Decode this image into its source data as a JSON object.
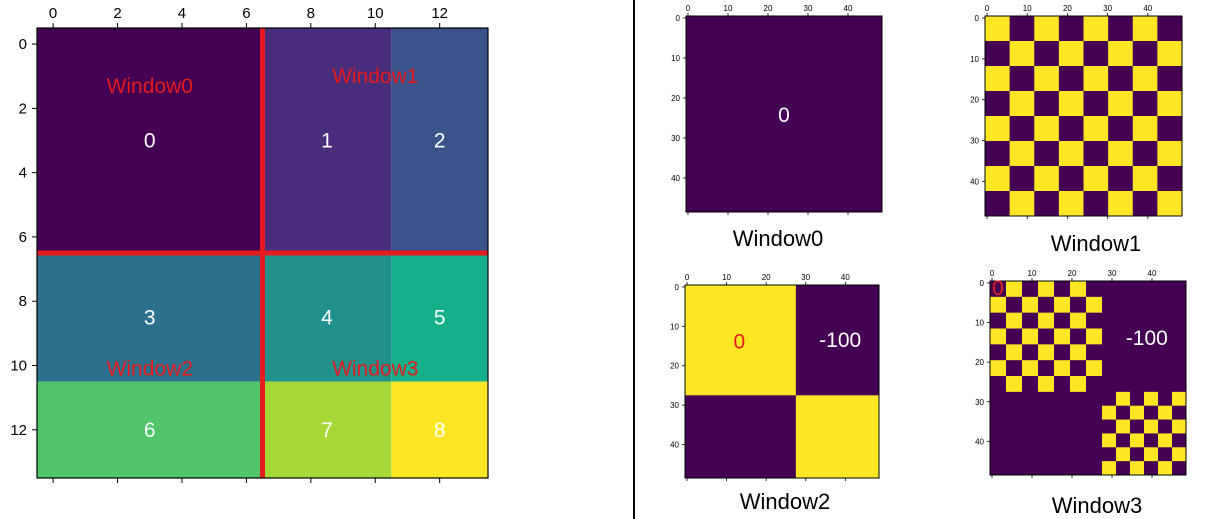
{
  "colors": {
    "axis": "#000000",
    "divider": "#000000",
    "split_line": "#e41a1c",
    "window_label": "#e41a1c",
    "cell_text": "#ffffff",
    "purple": "#440154",
    "yellow": "#fde725",
    "caption_text": "#000000",
    "zero_marker": "#e41a1c"
  },
  "main_matrix": {
    "x_ticks": [
      "0",
      "2",
      "4",
      "6",
      "8",
      "10",
      "12"
    ],
    "y_ticks": [
      "0",
      "2",
      "4",
      "6",
      "8",
      "10",
      "12"
    ],
    "x_tick_values": [
      0,
      2,
      4,
      6,
      8,
      10,
      12
    ],
    "y_tick_values": [
      0,
      2,
      4,
      6,
      8,
      10,
      12
    ],
    "extent": [
      14,
      14
    ],
    "col_bounds": [
      0,
      7,
      11,
      14
    ],
    "row_bounds": [
      0,
      7,
      11,
      14
    ],
    "split_at": [
      7,
      7
    ],
    "cell_labels": [
      "0",
      "1",
      "2",
      "3",
      "4",
      "5",
      "6",
      "7",
      "8"
    ],
    "cell_values": [
      0,
      1,
      2,
      3,
      4,
      5,
      6,
      7,
      8
    ],
    "cell_colors": [
      "#440154",
      "#472d7b",
      "#3b528b",
      "#2c728e",
      "#21918c",
      "#15b08a",
      "#51c569",
      "#a5d938",
      "#fde725"
    ],
    "windows": [
      {
        "label": "Window0",
        "col": 3.5,
        "row": 1.8
      },
      {
        "label": "Window1",
        "col": 10.5,
        "row": 1.5
      },
      {
        "label": "Window2",
        "col": 3.5,
        "row": 10.6
      },
      {
        "label": "Window3",
        "col": 10.5,
        "row": 10.6
      }
    ]
  },
  "small_ticks": {
    "labels": [
      "0",
      "10",
      "20",
      "30",
      "40"
    ],
    "values": [
      0,
      10,
      20,
      30,
      40
    ],
    "extent": 49
  },
  "panels": [
    {
      "caption": "Window0",
      "pattern": "solid",
      "texts": [
        "0"
      ]
    },
    {
      "caption": "Window1",
      "pattern": "checker",
      "texts": []
    },
    {
      "caption": "Window2",
      "pattern": "quadrant",
      "texts": [
        "0",
        "-100"
      ]
    },
    {
      "caption": "Window3",
      "pattern": "quadrant-checker",
      "texts": [
        "0",
        "-100"
      ]
    }
  ]
}
